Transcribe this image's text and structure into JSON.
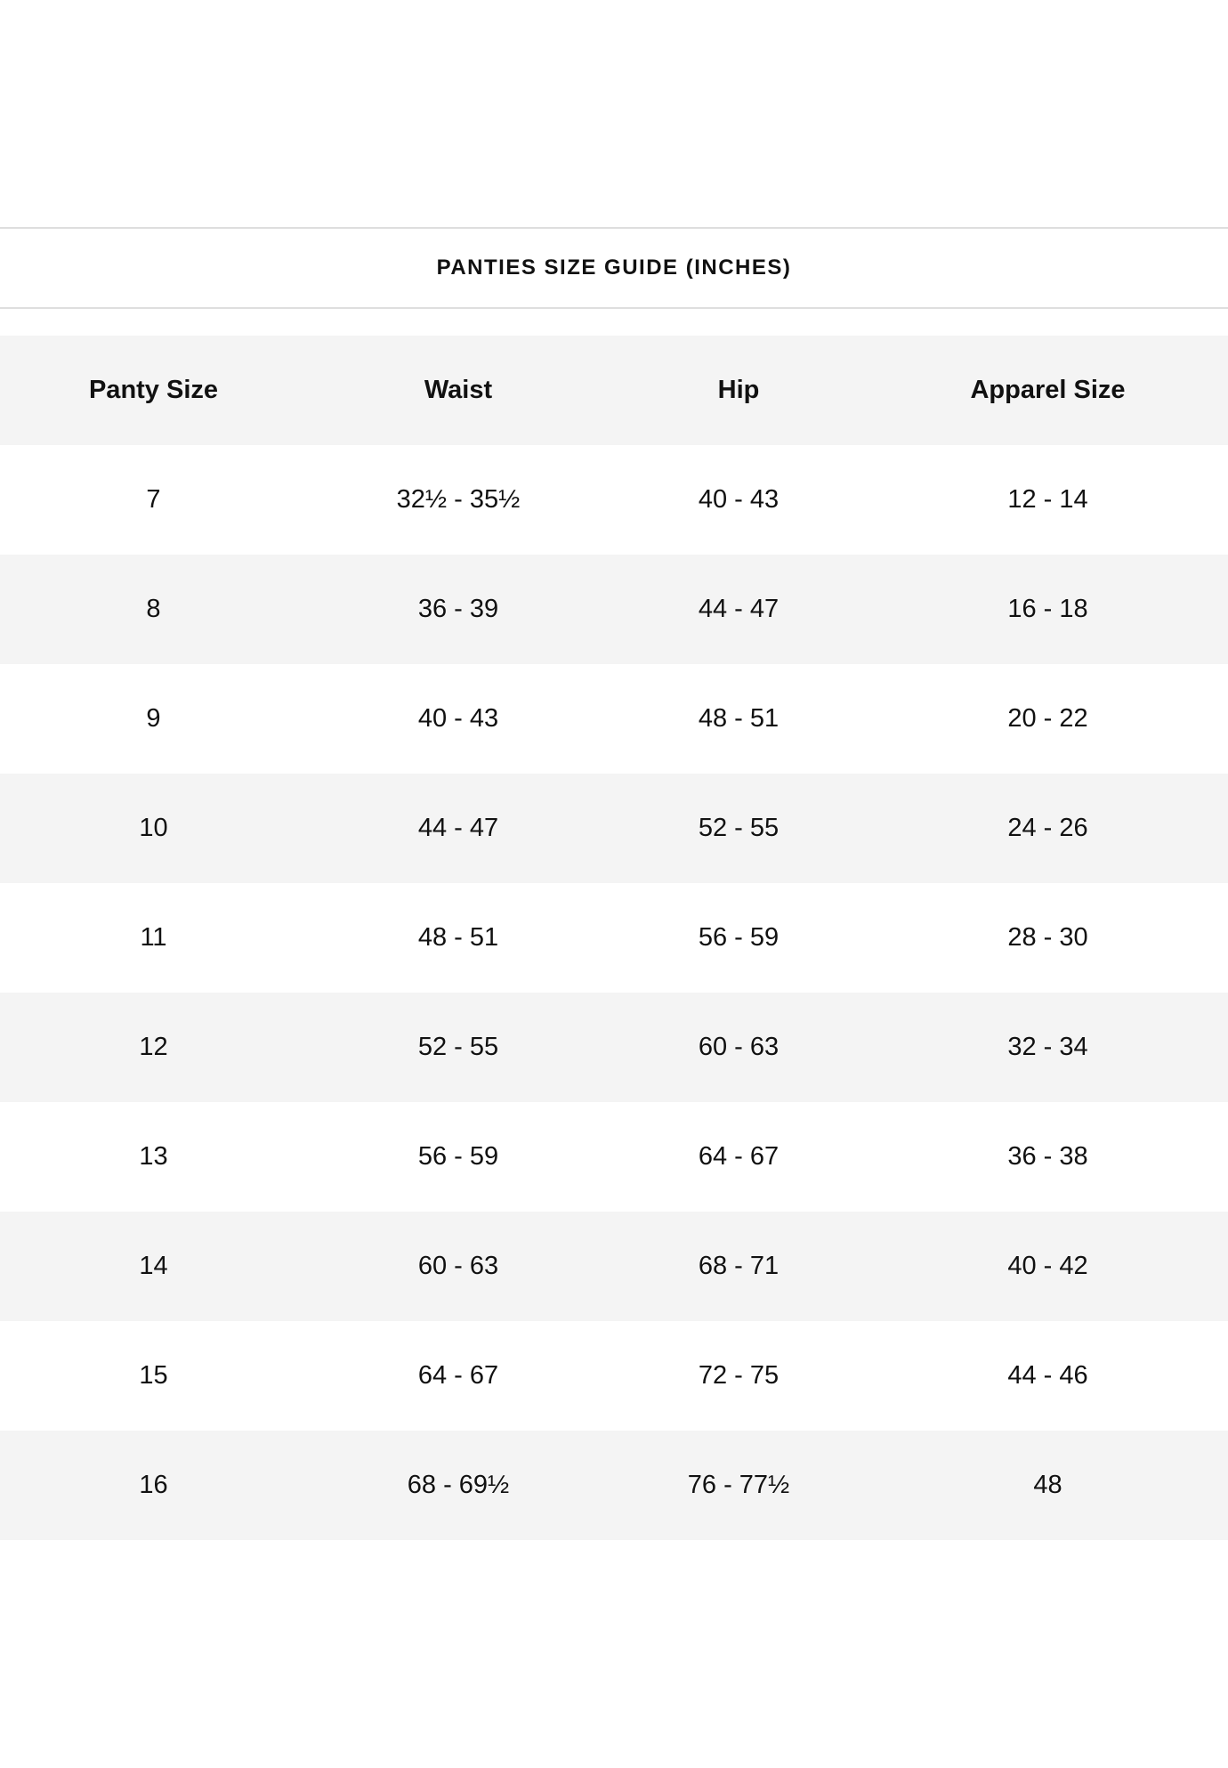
{
  "title": "PANTIES SIZE GUIDE (INCHES)",
  "headers": [
    "Panty Size",
    "Waist",
    "Hip",
    "Apparel Size"
  ],
  "rows": [
    [
      "7",
      "32½ - 35½",
      "40 - 43",
      "12 - 14"
    ],
    [
      "8",
      "36 - 39",
      "44 - 47",
      "16 - 18"
    ],
    [
      "9",
      "40 - 43",
      "48 - 51",
      "20 - 22"
    ],
    [
      "10",
      "44 - 47",
      "52 - 55",
      "24 - 26"
    ],
    [
      "11",
      "48 - 51",
      "56 - 59",
      "28 - 30"
    ],
    [
      "12",
      "52 - 55",
      "60 - 63",
      "32 - 34"
    ],
    [
      "13",
      "56 - 59",
      "64 - 67",
      "36 - 38"
    ],
    [
      "14",
      "60 - 63",
      "68 - 71",
      "40 - 42"
    ],
    [
      "15",
      "64 - 67",
      "72 - 75",
      "44 - 46"
    ],
    [
      "16",
      "68 - 69½",
      "76 - 77½",
      "48"
    ]
  ],
  "colors": {
    "stripe": "#f4f4f4",
    "divider": "#dedede",
    "text": "#111111"
  }
}
